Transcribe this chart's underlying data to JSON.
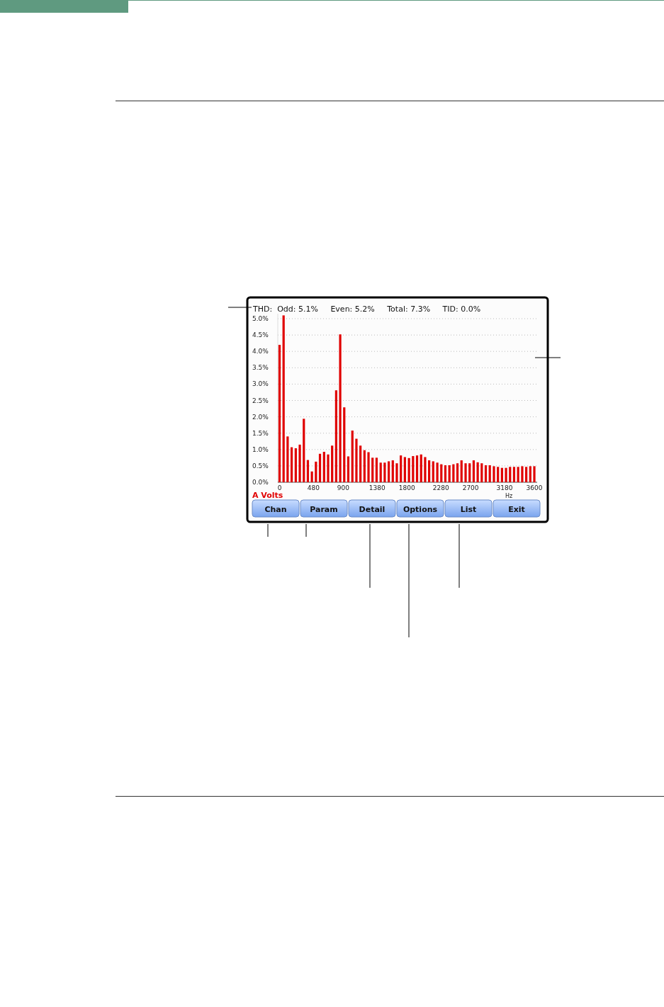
{
  "chart_data": {
    "type": "bar",
    "title": "THD:  Odd: 5.1%     Even: 5.2%     Total: 7.3%     TID: 0.0%",
    "subtitle": "A Volts",
    "xlabel": "Hz",
    "x": [
      0,
      57,
      114,
      171,
      229,
      286,
      343,
      400,
      457,
      514,
      571,
      629,
      686,
      743,
      800,
      857,
      914,
      971,
      1029,
      1086,
      1143,
      1200,
      1257,
      1314,
      1371,
      1429,
      1486,
      1543,
      1600,
      1657,
      1714,
      1771,
      1829,
      1886,
      1943,
      2000,
      2057,
      2114,
      2171,
      2229,
      2286,
      2343,
      2400,
      2457,
      2514,
      2571,
      2629,
      2686,
      2743,
      2800,
      2857,
      2914,
      2971,
      3029,
      3086,
      3143,
      3200,
      3257,
      3314,
      3371,
      3429,
      3486,
      3543,
      3600
    ],
    "values": [
      4.2,
      5.1,
      1.4,
      1.07,
      1.04,
      1.15,
      1.94,
      0.68,
      0.33,
      0.63,
      0.87,
      0.93,
      0.85,
      1.12,
      2.81,
      4.52,
      2.29,
      0.79,
      1.58,
      1.33,
      1.12,
      0.98,
      0.92,
      0.75,
      0.75,
      0.6,
      0.6,
      0.64,
      0.67,
      0.58,
      0.82,
      0.77,
      0.74,
      0.8,
      0.82,
      0.85,
      0.77,
      0.67,
      0.64,
      0.6,
      0.55,
      0.52,
      0.52,
      0.55,
      0.58,
      0.67,
      0.58,
      0.58,
      0.67,
      0.61,
      0.58,
      0.52,
      0.52,
      0.49,
      0.47,
      0.44,
      0.44,
      0.47,
      0.47,
      0.47,
      0.49,
      0.47,
      0.49,
      0.49
    ],
    "color": "#e00000",
    "xlim": [
      -25,
      3640
    ],
    "xticks": [
      0,
      480,
      900,
      1380,
      1800,
      2280,
      2700,
      3180,
      3600
    ],
    "ylim": [
      0,
      5.15
    ],
    "yticks": [
      {
        "value": 0,
        "label": "0.0%"
      },
      {
        "value": 0.5,
        "label": "0.5%"
      },
      {
        "value": 1,
        "label": "1.0%"
      },
      {
        "value": 1.5,
        "label": "1.5%"
      },
      {
        "value": 2,
        "label": "2.0%"
      },
      {
        "value": 2.5,
        "label": "2.5%"
      },
      {
        "value": 3,
        "label": "3.0%"
      },
      {
        "value": 3.5,
        "label": "3.5%"
      },
      {
        "value": 4,
        "label": "4.0%"
      },
      {
        "value": 4.5,
        "label": "4.5%"
      },
      {
        "value": 5,
        "label": "5.0%"
      }
    ],
    "grid": "y",
    "annotations": [
      "Chan",
      "Param",
      "Detail",
      "Options",
      "List",
      "Exit"
    ]
  }
}
